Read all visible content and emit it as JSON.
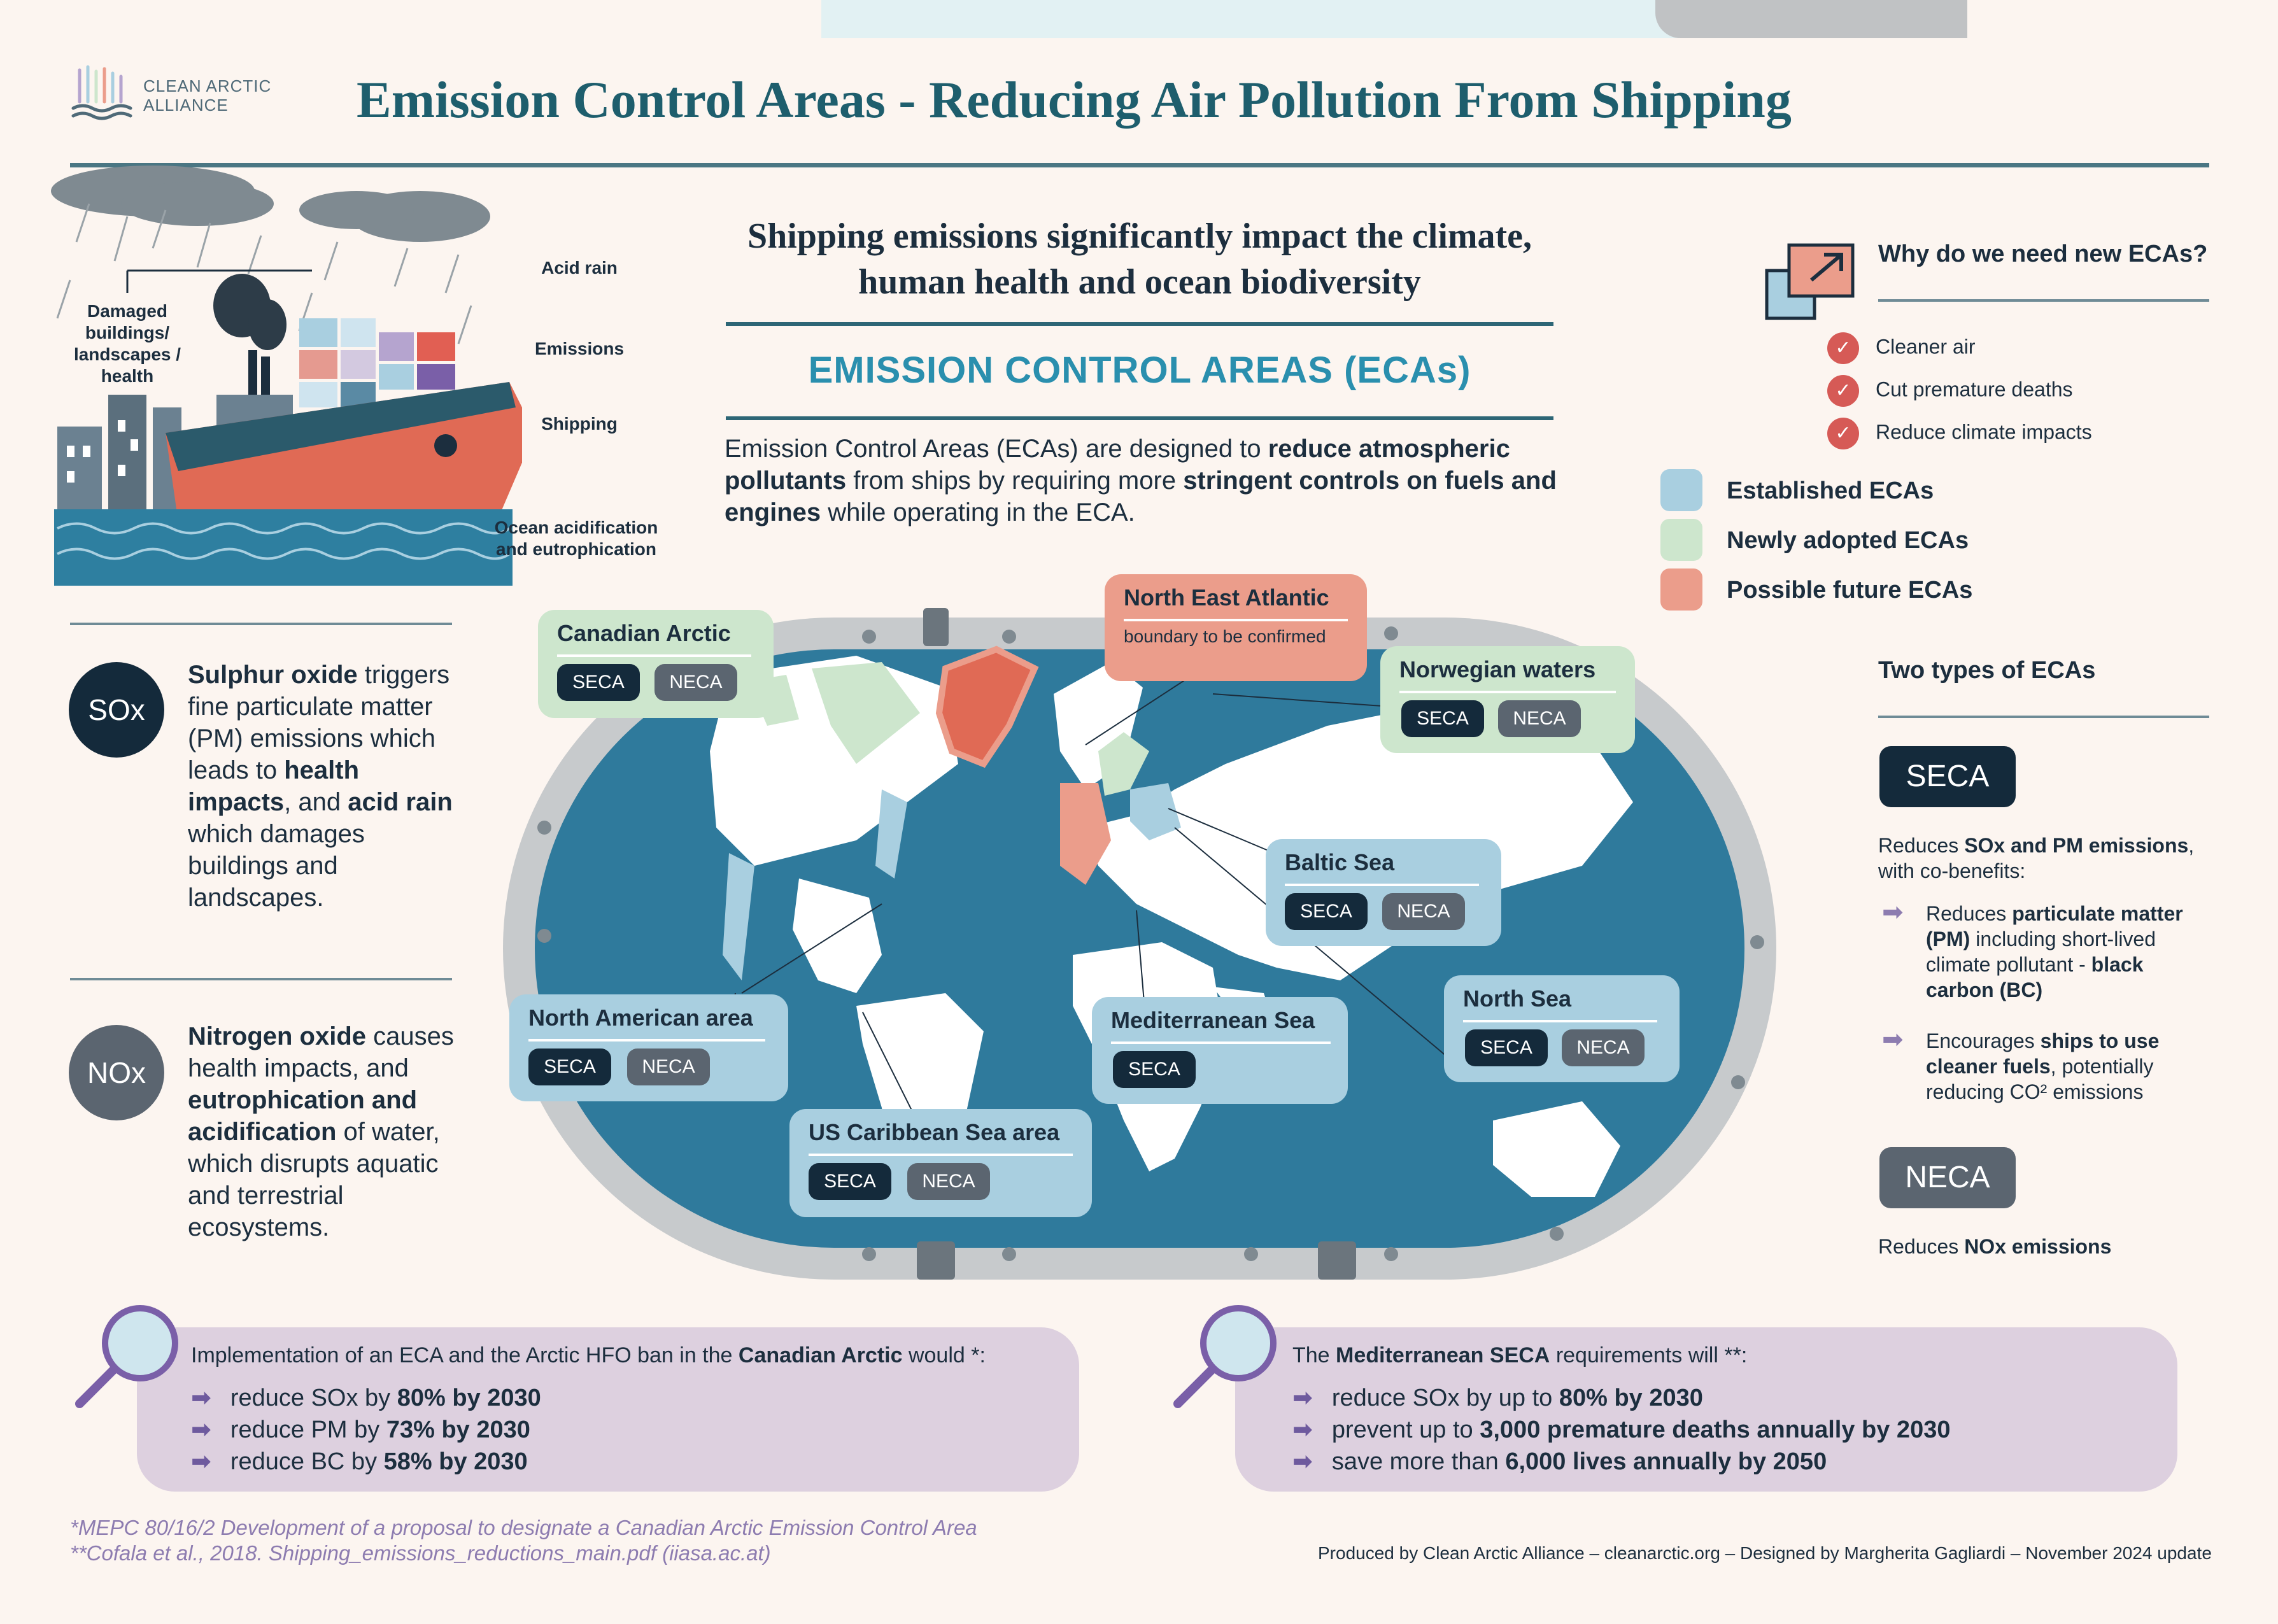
{
  "logo": {
    "line1": "CLEAN ARCTIC",
    "line2": "ALLIANCE"
  },
  "title": "Emission Control Areas - Reducing Air Pollution From Shipping",
  "illustration": {
    "damaged": "Damaged buildings/ landscapes / health",
    "acid_rain": "Acid rain",
    "emissions": "Emissions",
    "shipping": "Shipping",
    "ocean": "Ocean acidification and eutrophication"
  },
  "headline": {
    "line1": "Shipping emissions significantly impact the climate,",
    "line2": "human health and ocean biodiversity"
  },
  "eca_title": "EMISSION CONTROL AREAS (ECAs)",
  "intro": {
    "p1": "Emission Control Areas (ECAs) are designed to ",
    "b1": "reduce atmospheric pollutants",
    "p2": " from ships by requiring more ",
    "b2": "stringent controls on fuels and engines",
    "p3": " while operating in the ECA."
  },
  "sox": {
    "symbol": "SOx",
    "b1": "Sulphur oxide",
    "t1": " triggers fine particulate matter (PM) emissions which leads to ",
    "b2": "health impacts",
    "t2": ", and ",
    "b3": "acid rain",
    "t3": " which damages buildings and landscapes."
  },
  "nox": {
    "symbol": "NOx",
    "b1": "Nitrogen oxide",
    "t1": " causes health impacts, and ",
    "b2": "eutrophication and acidification",
    "t2": " of water, which disrupts aquatic and terrestrial ecosystems."
  },
  "why": {
    "title": "Why do we need new ECAs?",
    "items": [
      "Cleaner air",
      "Cut premature deaths",
      "Reduce climate impacts"
    ]
  },
  "legend": [
    {
      "label": "Established ECAs",
      "color": "#a9cfe0"
    },
    {
      "label": "Newly adopted ECAs",
      "color": "#cde6cd"
    },
    {
      "label": "Possible future ECAs",
      "color": "#eb9d8b"
    }
  ],
  "types": {
    "title": "Two types of ECAs",
    "seca": {
      "label": "SECA",
      "d1": "Reduces ",
      "d1b": "SOx and PM emissions",
      "d1e": ", with co-benefits:",
      "b1a": "Reduces ",
      "b1b": "particulate matter (PM)",
      "b1c": " including short-lived climate pollutant - ",
      "b1d": "black carbon (BC)",
      "b2a": "Encourages ",
      "b2b": "ships to use cleaner fuels",
      "b2c": ", potentially reducing CO² emissions"
    },
    "neca": {
      "label": "NECA",
      "d1": "Reduces ",
      "d1b": "NOx emissions"
    }
  },
  "regions": {
    "canadian_arctic": "Canadian Arctic",
    "north_east_atlantic": "North East Atlantic",
    "nea_sub": "boundary to be confirmed",
    "norwegian": "Norwegian waters",
    "baltic": "Baltic Sea",
    "north_american": "North American area",
    "mediterranean": "Mediterranean Sea",
    "north_sea": "North Sea",
    "us_caribbean": "US Caribbean Sea area",
    "seca": "SECA",
    "neca": "NECA"
  },
  "stat_left": {
    "h1": "Implementation of an ECA and the Arctic HFO ban in the ",
    "h1b": "Canadian Arctic",
    "h1e": " would *:",
    "lines": [
      {
        "a": "reduce SOx by ",
        "b": "80% by 2030"
      },
      {
        "a": "reduce PM by ",
        "b": "73% by 2030"
      },
      {
        "a": "reduce BC by ",
        "b": "58% by 2030"
      }
    ]
  },
  "stat_right": {
    "h1": "The ",
    "h1b": "Mediterranean SECA",
    "h1e": " requirements will **:",
    "lines": [
      {
        "a": "reduce SOx by up to ",
        "b": "80% by 2030"
      },
      {
        "a": "prevent up to ",
        "b": "3,000 premature deaths annually by 2030"
      },
      {
        "a": "save more than ",
        "b": "6,000 lives annually by 2050"
      }
    ]
  },
  "footnotes": {
    "f1": "*MEPC 80/16/2 Development of a proposal to designate a Canadian Arctic Emission Control Area",
    "f2": "**Cofala et al., 2018. Shipping_emissions_reductions_main.pdf (iiasa.ac.at)"
  },
  "credit": "Produced by Clean Arctic Alliance – cleanarctic.org – Designed by Margherita Gagliardi – November 2024 update"
}
